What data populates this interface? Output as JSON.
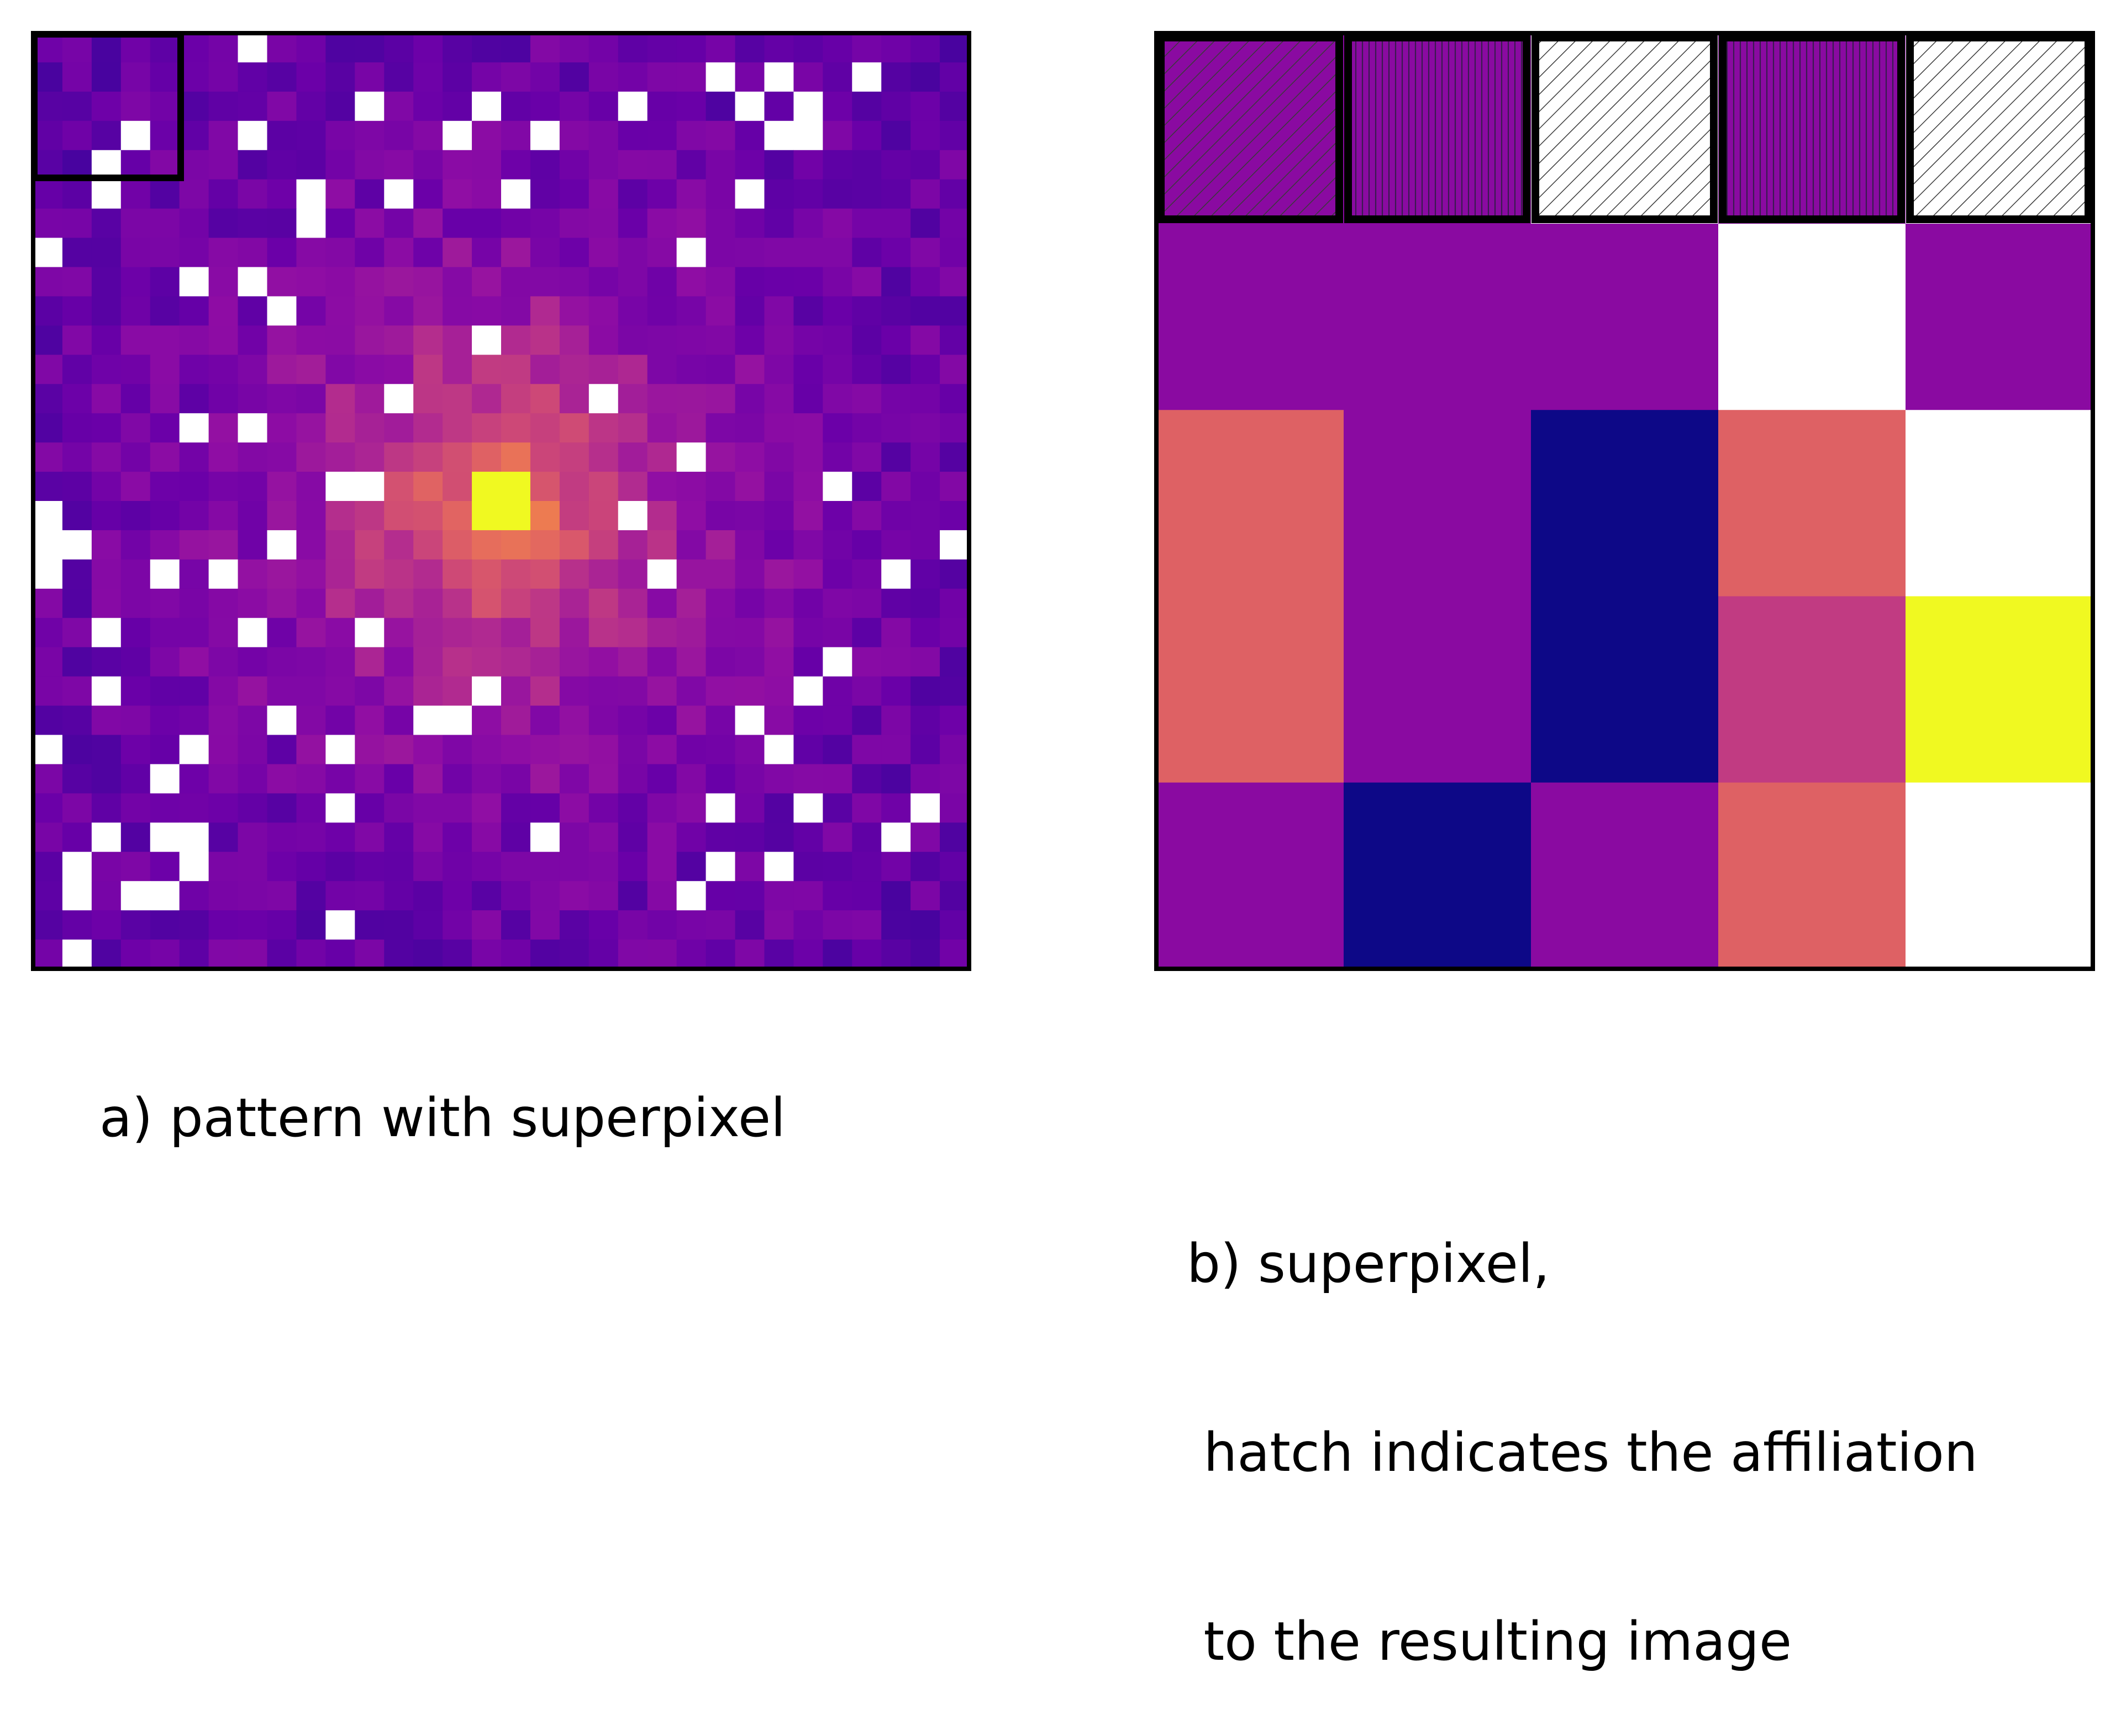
{
  "figure": {
    "panel_a": {
      "caption": "a) pattern with superpixel",
      "grid_size": 32,
      "superpixel_cells": 5,
      "colormap": "plasma",
      "masked_color": "#ffffff"
    },
    "panel_b": {
      "caption_lines": [
        "b) superpixel,",
        " hatch indicates the affiliation",
        " to the resulting image"
      ],
      "columns": 5,
      "header_row": [
        {
          "fill": "#8a0aa1",
          "hatch": "diagonal"
        },
        {
          "fill": "#8a0aa1",
          "hatch": "vertical"
        },
        {
          "fill": "#ffffff",
          "hatch": "diagonal"
        },
        {
          "fill": "#8a0aa1",
          "hatch": "vertical"
        },
        {
          "fill": "#ffffff",
          "hatch": "diagonal"
        }
      ],
      "cells": [
        [
          "#8a0aa1",
          "#8a0aa1",
          "#8a0aa1",
          "#ffffff",
          "#8a0aa1"
        ],
        [
          "#de6164",
          "#8a0aa1",
          "#0d0887",
          "#de6164",
          "#ffffff"
        ],
        [
          "#de6164",
          "#8a0aa1",
          "#0d0887",
          "#c13b82",
          "#f0f921"
        ],
        [
          "#8a0aa1",
          "#0d0887",
          "#8a0aa1",
          "#de6164",
          "#ffffff"
        ]
      ]
    }
  },
  "colors": {
    "border": "#000000",
    "masked": "#ffffff",
    "hatch_line": "#444444"
  }
}
